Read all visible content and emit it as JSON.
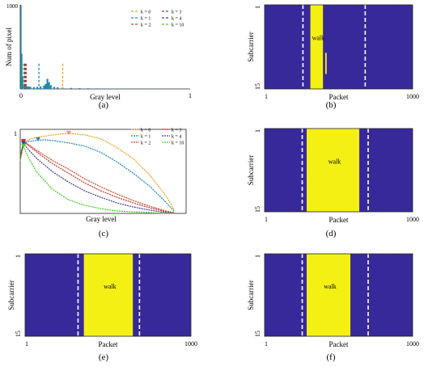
{
  "colors": {
    "background": "#38299a",
    "activity": "#f4f014",
    "k0": "#f0a020",
    "k1": "#1f8ab0",
    "k2": "#d04020",
    "k3": "#c03030",
    "k4": "#403c9a",
    "k10": "#40d020"
  },
  "chart_data": [
    {
      "id": "a",
      "caption": "(a)",
      "type": "bar",
      "ylabel": "Num of pixel",
      "xlabel": "Gray level",
      "x_ticks": [
        "0",
        "1"
      ],
      "y_ticks": [
        "1000"
      ],
      "xlim": [
        0,
        1
      ],
      "ylim": [
        0,
        1000
      ],
      "legend_position": "top-right",
      "legend": [
        "k = 0",
        "k = 1",
        "k = 2",
        "k = 3",
        "k = 4",
        "k = 10"
      ],
      "histogram": [
        {
          "x": 0.005,
          "y": 1000
        },
        {
          "x": 0.01,
          "y": 420
        },
        {
          "x": 0.015,
          "y": 150
        },
        {
          "x": 0.02,
          "y": 60
        },
        {
          "x": 0.025,
          "y": 45
        },
        {
          "x": 0.03,
          "y": 35
        },
        {
          "x": 0.04,
          "y": 30
        },
        {
          "x": 0.05,
          "y": 28
        },
        {
          "x": 0.06,
          "y": 25
        },
        {
          "x": 0.08,
          "y": 22
        },
        {
          "x": 0.1,
          "y": 25
        },
        {
          "x": 0.12,
          "y": 30
        },
        {
          "x": 0.14,
          "y": 40
        },
        {
          "x": 0.15,
          "y": 60
        },
        {
          "x": 0.16,
          "y": 120
        },
        {
          "x": 0.17,
          "y": 80
        },
        {
          "x": 0.18,
          "y": 45
        },
        {
          "x": 0.2,
          "y": 25
        },
        {
          "x": 0.22,
          "y": 20
        },
        {
          "x": 0.25,
          "y": 15
        },
        {
          "x": 0.3,
          "y": 12
        },
        {
          "x": 0.35,
          "y": 10
        },
        {
          "x": 0.4,
          "y": 8
        },
        {
          "x": 0.45,
          "y": 7
        },
        {
          "x": 0.5,
          "y": 6
        },
        {
          "x": 0.55,
          "y": 5
        },
        {
          "x": 0.6,
          "y": 5
        },
        {
          "x": 0.65,
          "y": 4
        },
        {
          "x": 0.7,
          "y": 4
        },
        {
          "x": 0.75,
          "y": 4
        },
        {
          "x": 0.8,
          "y": 3
        },
        {
          "x": 0.85,
          "y": 2
        }
      ],
      "thresholds": [
        {
          "k": "k0",
          "x": 0.25,
          "y": 300
        },
        {
          "k": "k1",
          "x": 0.11,
          "y": 300
        },
        {
          "k": "k2",
          "x": 0.03,
          "y": 300
        },
        {
          "k": "k3",
          "x": 0.035,
          "y": 300
        },
        {
          "k": "k4",
          "x": 0.025,
          "y": 300
        },
        {
          "k": "k10",
          "x": 0.02,
          "y": 300
        }
      ]
    },
    {
      "id": "b",
      "caption": "(b)",
      "type": "heatmap",
      "ylabel": "Subcarrier",
      "xlabel": "Packet",
      "x_ticks": [
        "1",
        "1000"
      ],
      "y_ticks": [
        "1",
        "15"
      ],
      "xlim": [
        1,
        1000
      ],
      "ylim": [
        1,
        15
      ],
      "annotation": "walk",
      "activity_regions": [
        {
          "x0": 310,
          "x1": 395,
          "y0": 1,
          "y1": 15
        },
        {
          "x0": 410,
          "x1": 420,
          "y0": 9,
          "y1": 12.5
        }
      ],
      "dashed_lines": [
        260,
        680
      ]
    },
    {
      "id": "c",
      "caption": "(c)",
      "type": "line",
      "xlabel": "Gray level",
      "y_ticks": [
        "1"
      ],
      "xlim": [
        0,
        1
      ],
      "ylim": [
        0,
        1.05
      ],
      "legend_position": "top-right",
      "series": [
        {
          "name": "k = 0",
          "key": "k0",
          "points": [
            [
              0,
              0.72
            ],
            [
              0.02,
              0.87
            ],
            [
              0.05,
              0.92
            ],
            [
              0.1,
              0.95
            ],
            [
              0.2,
              0.98
            ],
            [
              0.3,
              1.0
            ],
            [
              0.4,
              0.98
            ],
            [
              0.5,
              0.93
            ],
            [
              0.6,
              0.82
            ],
            [
              0.7,
              0.68
            ],
            [
              0.8,
              0.48
            ],
            [
              0.9,
              0.22
            ],
            [
              0.95,
              0.05
            ]
          ],
          "marker": [
            0.3,
            1.0
          ]
        },
        {
          "name": "k = 1",
          "key": "k1",
          "points": [
            [
              0,
              0.7
            ],
            [
              0.02,
              0.88
            ],
            [
              0.05,
              0.9
            ],
            [
              0.1,
              0.91
            ],
            [
              0.15,
              0.92
            ],
            [
              0.2,
              0.91
            ],
            [
              0.3,
              0.88
            ],
            [
              0.4,
              0.84
            ],
            [
              0.5,
              0.76
            ],
            [
              0.6,
              0.64
            ],
            [
              0.7,
              0.5
            ],
            [
              0.8,
              0.34
            ],
            [
              0.9,
              0.14
            ],
            [
              0.95,
              0.03
            ]
          ],
          "marker": [
            0.11,
            0.92
          ]
        },
        {
          "name": "k = 2",
          "key": "k2",
          "points": [
            [
              0,
              0.7
            ],
            [
              0.02,
              0.9
            ],
            [
              0.05,
              0.86
            ],
            [
              0.1,
              0.79
            ],
            [
              0.2,
              0.66
            ],
            [
              0.3,
              0.55
            ],
            [
              0.4,
              0.43
            ],
            [
              0.5,
              0.33
            ],
            [
              0.6,
              0.24
            ],
            [
              0.7,
              0.16
            ],
            [
              0.8,
              0.09
            ],
            [
              0.9,
              0.03
            ],
            [
              0.95,
              0.01
            ]
          ],
          "marker": [
            0.02,
            0.9
          ]
        },
        {
          "name": "k = 3",
          "key": "k3",
          "points": [
            [
              0,
              0.7
            ],
            [
              0.02,
              0.89
            ],
            [
              0.05,
              0.85
            ],
            [
              0.1,
              0.77
            ],
            [
              0.2,
              0.62
            ],
            [
              0.3,
              0.5
            ],
            [
              0.4,
              0.38
            ],
            [
              0.5,
              0.28
            ],
            [
              0.6,
              0.2
            ],
            [
              0.7,
              0.13
            ],
            [
              0.8,
              0.07
            ],
            [
              0.9,
              0.02
            ],
            [
              0.95,
              0.01
            ]
          ],
          "marker": [
            0.02,
            0.89
          ]
        },
        {
          "name": "k = 4",
          "key": "k4",
          "points": [
            [
              0,
              0.68
            ],
            [
              0.02,
              0.87
            ],
            [
              0.05,
              0.8
            ],
            [
              0.1,
              0.69
            ],
            [
              0.2,
              0.52
            ],
            [
              0.3,
              0.39
            ],
            [
              0.4,
              0.28
            ],
            [
              0.5,
              0.2
            ],
            [
              0.6,
              0.13
            ],
            [
              0.7,
              0.08
            ],
            [
              0.8,
              0.04
            ],
            [
              0.9,
              0.01
            ],
            [
              0.95,
              0.0
            ]
          ],
          "marker": [
            0.02,
            0.87
          ]
        },
        {
          "name": "k = 10",
          "key": "k10",
          "points": [
            [
              0,
              0.66
            ],
            [
              0.02,
              0.84
            ],
            [
              0.05,
              0.7
            ],
            [
              0.1,
              0.52
            ],
            [
              0.2,
              0.3
            ],
            [
              0.3,
              0.17
            ],
            [
              0.4,
              0.1
            ],
            [
              0.5,
              0.06
            ],
            [
              0.6,
              0.03
            ],
            [
              0.7,
              0.02
            ],
            [
              0.8,
              0.01
            ],
            [
              0.9,
              0.0
            ],
            [
              0.95,
              0.0
            ]
          ],
          "marker": [
            0.02,
            0.84
          ]
        }
      ]
    },
    {
      "id": "d",
      "caption": "(d)",
      "type": "heatmap",
      "ylabel": "Subcarrier",
      "xlabel": "Packet",
      "x_ticks": [
        "1",
        "1000"
      ],
      "y_ticks": [
        "1",
        "15"
      ],
      "xlim": [
        1,
        1000
      ],
      "ylim": [
        1,
        15
      ],
      "annotation": "walk",
      "activity_regions": [
        {
          "x0": 285,
          "x1": 640,
          "y0": 1,
          "y1": 15
        }
      ],
      "dashed_lines": [
        255,
        700
      ]
    },
    {
      "id": "e",
      "caption": "(e)",
      "type": "heatmap",
      "ylabel": "Subcarrier",
      "xlabel": "Packet",
      "x_ticks": [
        "1",
        "1000"
      ],
      "y_ticks": [
        "1",
        "15"
      ],
      "xlim": [
        1,
        1000
      ],
      "ylim": [
        1,
        15
      ],
      "annotation": "walk",
      "activity_regions": [
        {
          "x0": 355,
          "x1": 650,
          "y0": 1,
          "y1": 15
        }
      ],
      "dashed_lines": [
        320,
        690
      ]
    },
    {
      "id": "f",
      "caption": "(f)",
      "type": "heatmap",
      "ylabel": "Subcarrier",
      "xlabel": "Packet",
      "x_ticks": [
        "1",
        "1000"
      ],
      "y_ticks": [
        "1",
        "15"
      ],
      "xlim": [
        1,
        1000
      ],
      "ylim": [
        1,
        15
      ],
      "annotation": "walk",
      "activity_regions": [
        {
          "x0": 285,
          "x1": 580,
          "y0": 1,
          "y1": 15
        }
      ],
      "dashed_lines": [
        255,
        700
      ]
    }
  ]
}
